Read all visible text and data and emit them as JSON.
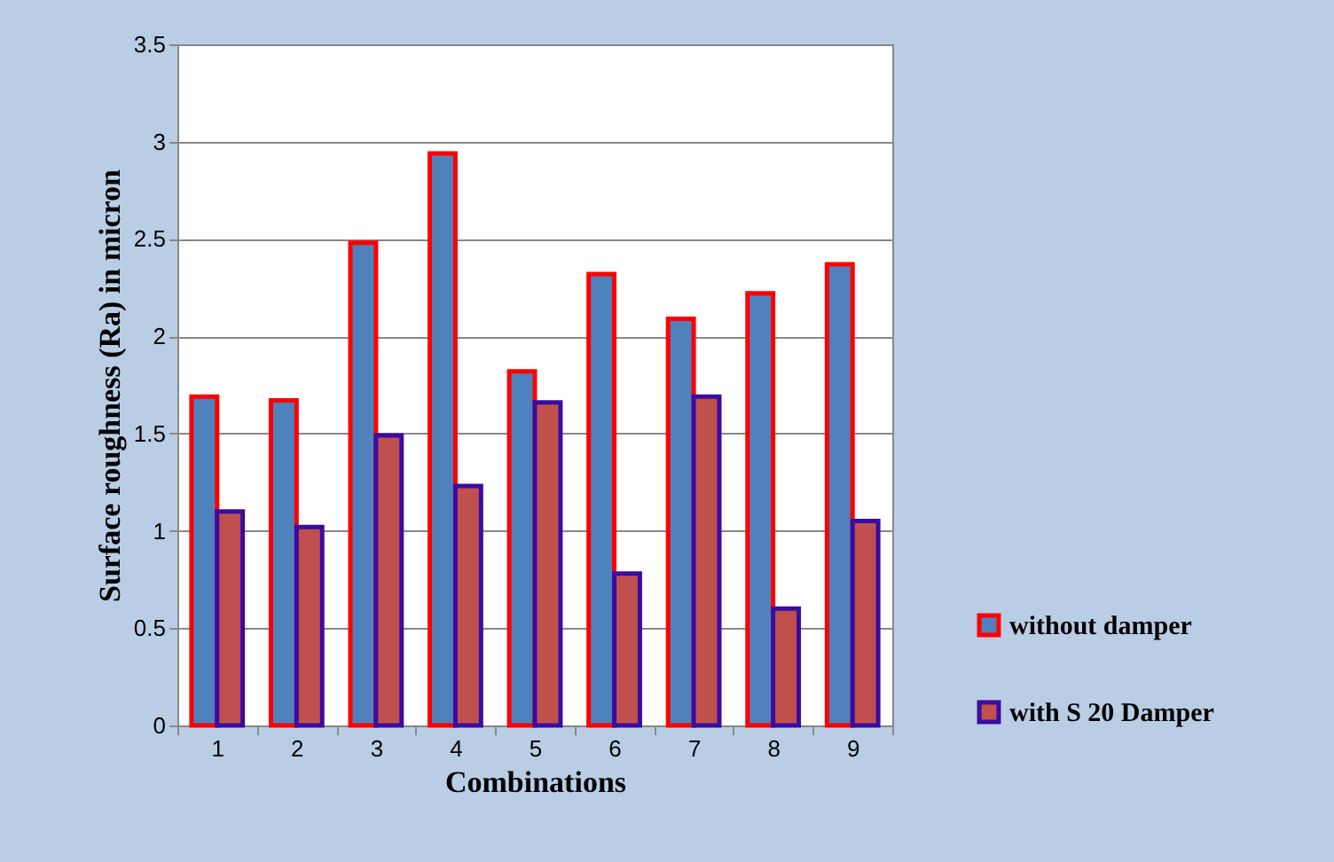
{
  "chart_data": {
    "type": "bar",
    "xlabel": "Combinations",
    "ylabel": "Surface roughness (Ra) in micron",
    "categories": [
      "1",
      "2",
      "3",
      "4",
      "5",
      "6",
      "7",
      "8",
      "9"
    ],
    "series": [
      {
        "name": "without damper",
        "color": "#4f81bd",
        "values": [
          1.69,
          1.67,
          2.48,
          2.94,
          1.82,
          2.32,
          2.09,
          2.22,
          2.37
        ]
      },
      {
        "name": "with S 20 Damper",
        "color": "#c0504d",
        "values": [
          1.1,
          1.02,
          1.49,
          1.23,
          1.66,
          0.78,
          1.69,
          0.6,
          1.05
        ]
      }
    ],
    "ylim": [
      0,
      3.5
    ],
    "yticks": [
      0,
      0.5,
      1,
      1.5,
      2,
      2.5,
      3,
      3.5
    ],
    "grid": "y",
    "legend": "right"
  }
}
